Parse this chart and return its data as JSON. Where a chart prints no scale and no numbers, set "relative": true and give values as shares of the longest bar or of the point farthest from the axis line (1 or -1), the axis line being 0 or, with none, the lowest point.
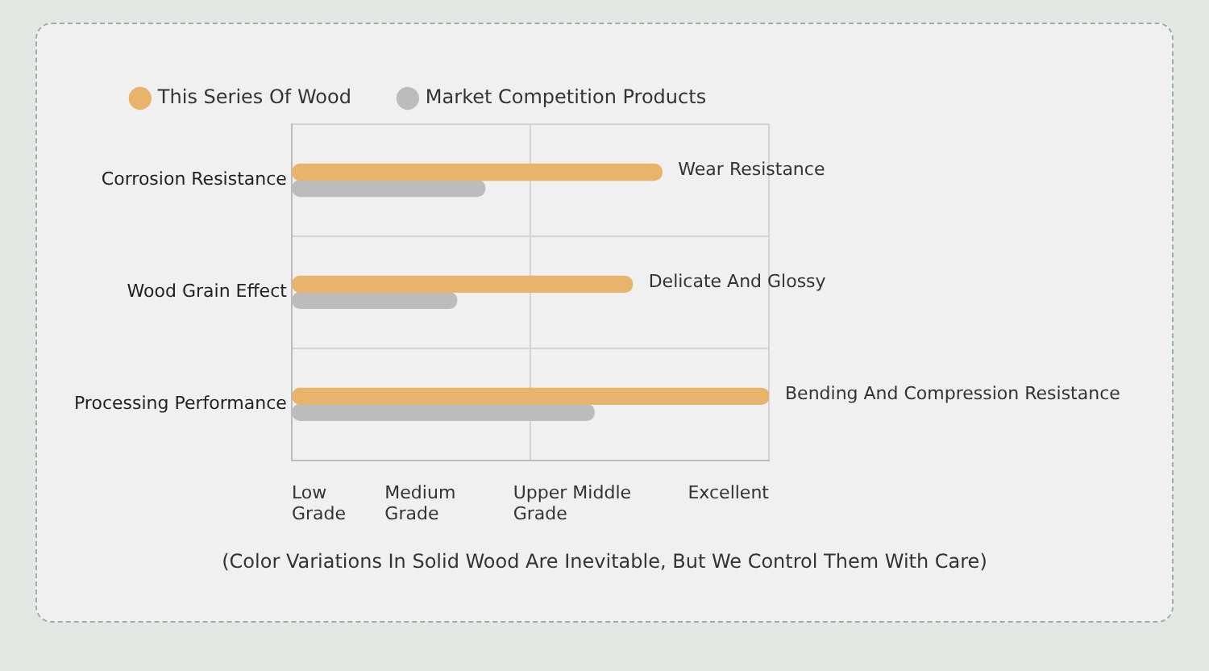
{
  "chart_data": {
    "type": "bar",
    "orientation": "horizontal",
    "relative": true,
    "categories": [
      "Corrosion Resistance",
      "Wood Grain Effect",
      "Processing Performance"
    ],
    "series": [
      {
        "name": "This Series Of Wood",
        "color": "#e8b36a",
        "values": [
          0.776,
          0.714,
          1
        ]
      },
      {
        "name": "Market Competition Products",
        "color": "#bcbcbc",
        "values": [
          0.405,
          0.346,
          0.634
        ]
      }
    ],
    "grid": true,
    "legend": "top",
    "annotations": [
      {
        "text": "Wear Resistance",
        "x": 0.776,
        "y": "Corrosion Resistance"
      },
      {
        "text": "Delicate And Glossy",
        "x": 0.714,
        "y": "Wood Grain Effect"
      },
      {
        "text": "Bending And Compression Resistance",
        "x": 1,
        "y": "Processing Performance"
      },
      "Low Grade",
      "Medium Grade",
      "Upper Middle Grade",
      "Excellent",
      "(Color Variations In Solid Wood Are Inevitable, But We Control Them With Care)"
    ]
  }
}
